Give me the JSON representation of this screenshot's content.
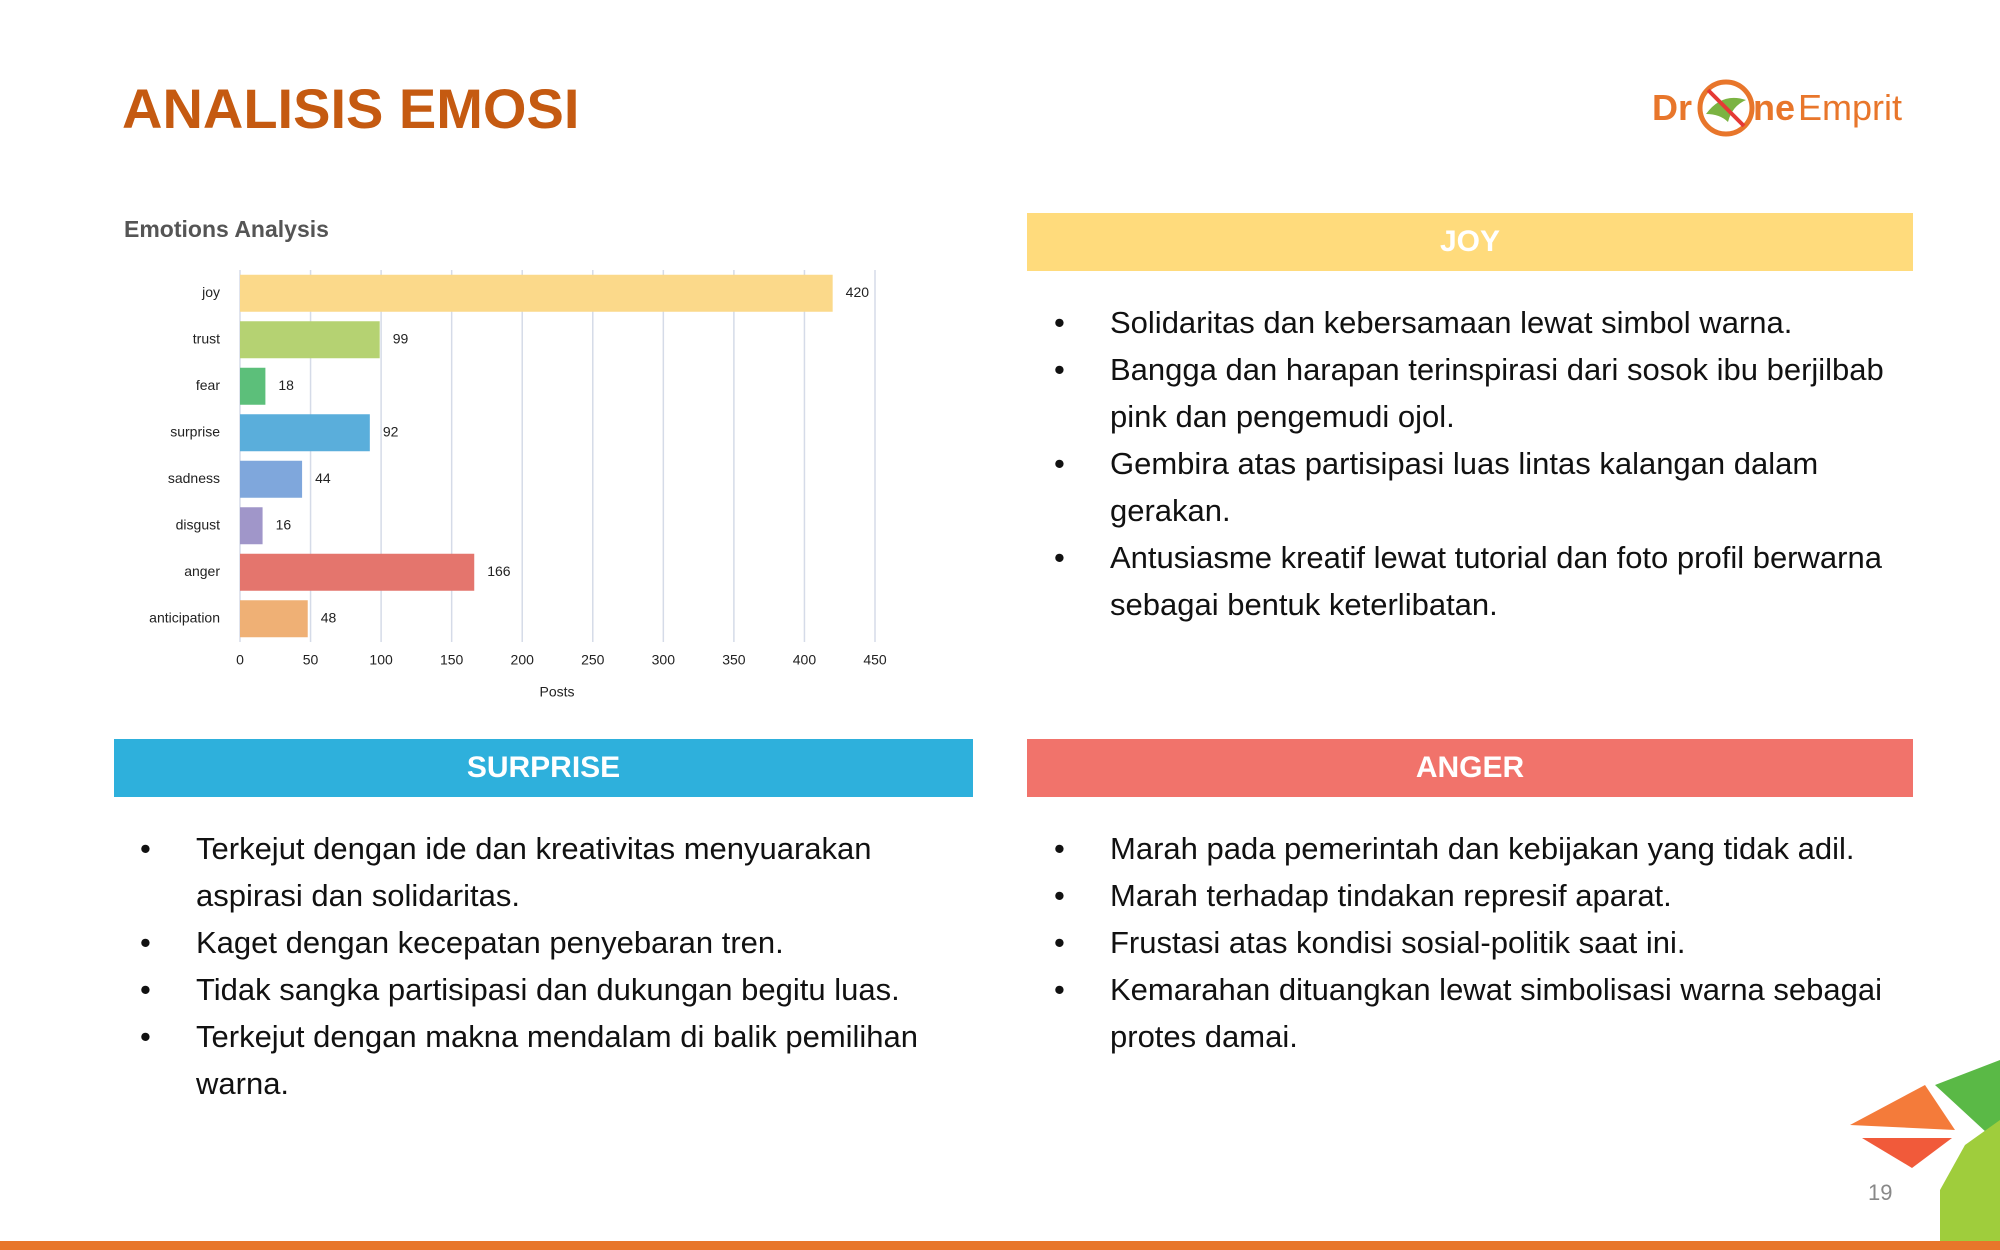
{
  "header": {
    "title": "ANALISIS EMOSI",
    "logo": [
      "Dr",
      "ne",
      "Emprit"
    ]
  },
  "chart_data": {
    "type": "bar",
    "orientation": "horizontal",
    "title": "Emotions Analysis",
    "x_label": "Posts",
    "categories": [
      "joy",
      "trust",
      "fear",
      "surprise",
      "sadness",
      "disgust",
      "anger",
      "anticipation"
    ],
    "values": [
      420,
      99,
      18,
      92,
      44,
      16,
      166,
      48
    ],
    "colors": [
      "#fbd98a",
      "#b5d272",
      "#5cbf7a",
      "#5aaedb",
      "#7fa7dc",
      "#a096c9",
      "#e4756d",
      "#efb075"
    ],
    "xlim": [
      0,
      450
    ],
    "xticks": [
      0,
      50,
      100,
      150,
      200,
      250,
      300,
      350,
      400,
      450
    ],
    "grid": true
  },
  "panels": [
    {
      "title": "JOY",
      "color": "#ffdb7c",
      "bullets": [
        "Solidaritas dan kebersamaan lewat simbol warna.",
        "Bangga dan harapan terinspirasi dari sosok ibu berjilbab pink dan pengemudi ojol.",
        "Gembira atas partisipasi luas lintas kalangan dalam gerakan.",
        "Antusiasme kreatif lewat tutorial dan foto profil berwarna sebagai bentuk keterlibatan."
      ]
    },
    {
      "title": "SURPRISE",
      "color": "#2eb0dc",
      "bullets": [
        "Terkejut dengan ide dan kreativitas menyuarakan aspirasi dan solidaritas.",
        "Kaget dengan kecepatan penyebaran tren.",
        "Tidak sangka partisipasi dan dukungan begitu luas.",
        "Terkejut dengan makna mendalam di balik pemilihan warna."
      ]
    },
    {
      "title": "ANGER",
      "color": "#f1736b",
      "bullets": [
        "Marah pada pemerintah dan kebijakan yang tidak adil.",
        "Marah terhadap tindakan represif aparat.",
        "Frustasi atas kondisi sosial-politik saat ini.",
        "Kemarahan dituangkan lewat simbolisasi warna sebagai protes damai."
      ]
    }
  ],
  "page_number": 19
}
